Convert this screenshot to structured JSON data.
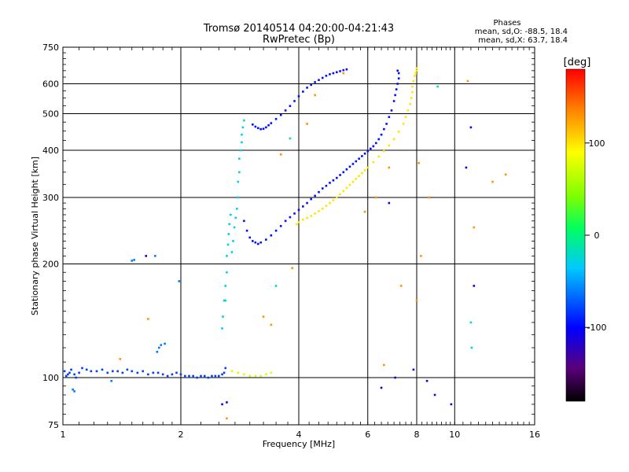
{
  "chart_data": {
    "type": "scatter",
    "title": "Tromsø 20140514 04:20:00-04:21:43",
    "subtitle": "RwPretec (Bp)",
    "xlabel": "Frequency [MHz]",
    "ylabel": "Stationary phase Virtual Height [km]",
    "x_scale": "log",
    "y_scale": "log",
    "xlim": [
      1,
      16
    ],
    "ylim": [
      75,
      750
    ],
    "x_ticks": [
      1,
      2,
      4,
      6,
      8,
      10,
      16
    ],
    "x_tick_labels": [
      "1",
      "2",
      "4",
      "6",
      "8",
      "10",
      "16"
    ],
    "y_ticks": [
      75,
      100,
      200,
      300,
      400,
      500,
      600,
      750
    ],
    "y_tick_labels": [
      "75",
      "100",
      "200",
      "300",
      "400",
      "500",
      "600",
      "750"
    ],
    "grid": true,
    "phases_info": {
      "header": "Phases",
      "line_o": "mean, sd,O: -88.5, 18.4",
      "line_x": "mean, sd,X: 63.7, 18.4"
    },
    "colorbar": {
      "unit": "[deg]",
      "min": -180,
      "max": 180,
      "ticks": [
        100,
        0,
        -100
      ],
      "tick_labels": [
        "100",
        "0",
        "-100"
      ]
    },
    "series": [
      {
        "phase": -80,
        "comment": "E-layer O trace",
        "x": [
          1.01,
          1.02,
          1.03,
          1.04,
          1.05,
          1.07,
          1.08,
          1.1,
          1.12,
          1.15,
          1.18,
          1.22,
          1.26,
          1.3,
          1.34,
          1.38,
          1.42,
          1.46,
          1.5,
          1.55,
          1.6,
          1.65,
          1.7,
          1.75,
          1.8,
          1.85,
          1.9,
          1.95,
          2.0,
          2.05,
          2.1,
          2.15,
          2.2,
          2.25,
          2.3,
          2.35,
          2.4,
          2.45,
          2.5,
          2.55,
          2.58,
          2.6
        ],
        "y": [
          104,
          101,
          102,
          103,
          105,
          102,
          100,
          103,
          106,
          105,
          104,
          104,
          105,
          103,
          104,
          104,
          103,
          105,
          104,
          103,
          104,
          102,
          103,
          103,
          102,
          101,
          102,
          103,
          102,
          101,
          101,
          101,
          100,
          101,
          101,
          100,
          101,
          101,
          101,
          102,
          103,
          106
        ]
      },
      {
        "phase": -60,
        "comment": "E-layer scattered",
        "x": [
          1.06,
          1.07,
          1.33,
          1.5,
          1.52,
          1.72,
          1.74,
          1.76,
          1.78,
          1.82,
          1.98
        ],
        "y": [
          93,
          92,
          98,
          204,
          205,
          210,
          117,
          120,
          122,
          123,
          180
        ]
      },
      {
        "phase": -30,
        "comment": "F-layer rising limb",
        "x": [
          2.55,
          2.56,
          2.58,
          2.6,
          2.62,
          2.62,
          2.64,
          2.65,
          2.66,
          2.68,
          2.7,
          2.72,
          2.74,
          2.76,
          2.78,
          2.8,
          2.8,
          2.82,
          2.82,
          2.84,
          2.86,
          2.86,
          2.88,
          2.9
        ],
        "y": [
          135,
          145,
          160,
          175,
          190,
          210,
          225,
          240,
          255,
          270,
          215,
          230,
          250,
          265,
          280,
          300,
          330,
          350,
          380,
          400,
          420,
          440,
          460,
          480
        ]
      },
      {
        "phase": -95,
        "comment": "F-layer O lower trace",
        "x": [
          2.9,
          2.95,
          3.0,
          3.05,
          3.1,
          3.15,
          3.2,
          3.3,
          3.4,
          3.5,
          3.6,
          3.7,
          3.8,
          3.9,
          4.0,
          4.1,
          4.2,
          4.3,
          4.4,
          4.5,
          4.6,
          4.7,
          4.8,
          4.9,
          5.0,
          5.1,
          5.2,
          5.3,
          5.4,
          5.5,
          5.6,
          5.7,
          5.8,
          5.9,
          6.0,
          6.1,
          6.2,
          6.3,
          6.4,
          6.5,
          6.6,
          6.7,
          6.8,
          6.9,
          7.0,
          7.05,
          7.1,
          7.15,
          7.2,
          7.2,
          7.15
        ],
        "y": [
          260,
          245,
          235,
          230,
          228,
          226,
          228,
          232,
          238,
          245,
          252,
          260,
          266,
          272,
          278,
          284,
          290,
          297,
          303,
          310,
          317,
          322,
          328,
          333,
          338,
          344,
          350,
          356,
          362,
          368,
          374,
          380,
          386,
          392,
          398,
          404,
          410,
          418,
          428,
          440,
          455,
          470,
          490,
          510,
          540,
          560,
          580,
          600,
          620,
          640,
          650
        ]
      },
      {
        "phase": -95,
        "comment": "F2 upper O branch",
        "x": [
          3.05,
          3.1,
          3.15,
          3.2,
          3.25,
          3.3,
          3.35,
          3.4,
          3.5,
          3.6,
          3.7,
          3.8,
          3.9,
          4.0,
          4.1,
          4.2,
          4.3,
          4.4,
          4.5,
          4.6,
          4.7,
          4.8,
          4.9,
          5.0,
          5.1,
          5.2,
          5.3
        ],
        "y": [
          468,
          462,
          458,
          455,
          456,
          460,
          466,
          472,
          484,
          496,
          510,
          524,
          540,
          556,
          572,
          586,
          596,
          606,
          614,
          622,
          630,
          636,
          640,
          644,
          648,
          652,
          655
        ]
      },
      {
        "phase": 75,
        "comment": "E-layer X trace",
        "x": [
          2.7,
          2.8,
          2.9,
          3.0,
          3.1,
          3.2,
          3.3,
          3.4
        ],
        "y": [
          104,
          103,
          102,
          101,
          101,
          101,
          102,
          103
        ]
      },
      {
        "phase": 100,
        "comment": "F-layer X trace",
        "x": [
          3.95,
          4.0,
          4.1,
          4.2,
          4.3,
          4.4,
          4.5,
          4.6,
          4.7,
          4.8,
          4.9,
          5.0,
          5.1,
          5.2,
          5.3,
          5.4,
          5.5,
          5.6,
          5.7,
          5.8,
          5.9,
          6.0,
          6.2,
          6.4,
          6.6,
          6.8,
          7.0,
          7.2,
          7.4,
          7.5,
          7.6,
          7.7,
          7.75,
          7.8,
          7.8,
          7.85,
          7.9,
          7.95,
          8.0,
          8.0
        ],
        "y": [
          255,
          258,
          262,
          265,
          268,
          272,
          276,
          280,
          285,
          290,
          295,
          300,
          306,
          312,
          318,
          324,
          330,
          336,
          342,
          348,
          354,
          360,
          372,
          385,
          398,
          412,
          428,
          448,
          470,
          490,
          510,
          530,
          550,
          570,
          590,
          610,
          630,
          640,
          650,
          660
        ]
      },
      {
        "phase": 130,
        "comment": "scattered warm points",
        "x": [
          1.4,
          1.65,
          2.62,
          3.25,
          3.4,
          3.6,
          3.85,
          4.2,
          4.4,
          5.2,
          5.9,
          6.3,
          6.6,
          6.8,
          7.3,
          8.0,
          8.1,
          8.2,
          8.6,
          10.8,
          11.2,
          12.5,
          13.5
        ],
        "y": [
          112,
          143,
          78,
          145,
          138,
          390,
          195,
          470,
          560,
          640,
          275,
          300,
          108,
          360,
          175,
          160,
          370,
          210,
          300,
          610,
          250,
          330,
          345
        ]
      },
      {
        "phase": -110,
        "comment": "scattered cool points",
        "x": [
          1.63,
          2.55,
          2.62,
          6.5,
          6.8,
          7.05,
          7.85,
          8.5,
          8.9,
          9.8,
          10.7,
          11.2,
          11.0
        ],
        "y": [
          210,
          85,
          86,
          94,
          290,
          100,
          105,
          98,
          90,
          85,
          360,
          175,
          460
        ]
      },
      {
        "phase": -20,
        "comment": "scattered cyan points",
        "x": [
          2.6,
          3.5,
          3.8,
          9.05,
          11.0,
          11.05
        ],
        "y": [
          160,
          175,
          430,
          590,
          140,
          120
        ]
      }
    ]
  }
}
